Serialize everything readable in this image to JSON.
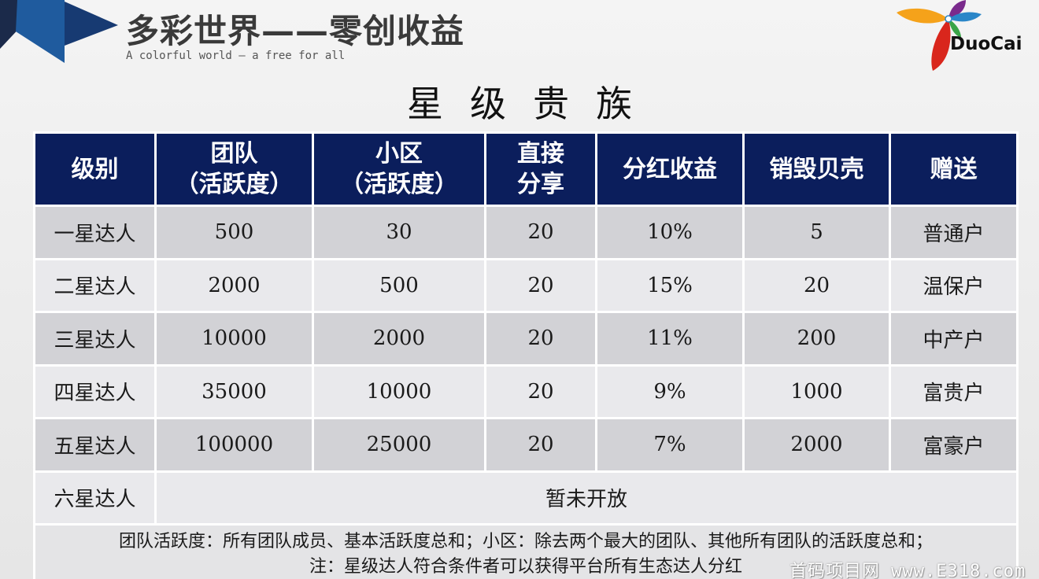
{
  "header": {
    "title": "多彩世界——零创收益",
    "subtitle": "A colorful world — a free for all",
    "logo_text": "DuoCai"
  },
  "page_heading": "星级贵族",
  "table": {
    "headers": [
      [
        "级别"
      ],
      [
        "团队",
        "（活跃度）"
      ],
      [
        "小区",
        "（活跃度）"
      ],
      [
        "直接",
        "分享"
      ],
      [
        "分红收益"
      ],
      [
        "销毁贝壳"
      ],
      [
        "赠送"
      ]
    ],
    "rows": [
      [
        "一星达人",
        "500",
        "30",
        "20",
        "10%",
        "5",
        "普通户"
      ],
      [
        "二星达人",
        "2000",
        "500",
        "20",
        "15%",
        "20",
        "温保户"
      ],
      [
        "三星达人",
        "10000",
        "2000",
        "20",
        "11%",
        "200",
        "中产户"
      ],
      [
        "四星达人",
        "35000",
        "10000",
        "20",
        "9%",
        "1000",
        "富贵户"
      ],
      [
        "五星达人",
        "100000",
        "25000",
        "20",
        "7%",
        "2000",
        "富豪户"
      ]
    ],
    "last_row": {
      "level": "六星达人",
      "status": "暂未开放"
    },
    "note_line1": "团队活跃度：所有团队成员、基本活跃度总和；小区：除去两个最大的团队、其他所有团队的活跃度总和；",
    "note_line2": "注：星级达人符合条件者可以获得平台所有生态达人分红"
  },
  "watermark": "首码项目网 www.E318.com",
  "colors": {
    "header_bg": "#0b1e5c",
    "row_odd": "#d2d2d6",
    "row_even": "#e9e9ec",
    "corner_dark": "#1b2a4a",
    "corner_blue": "#1f5b9e"
  }
}
